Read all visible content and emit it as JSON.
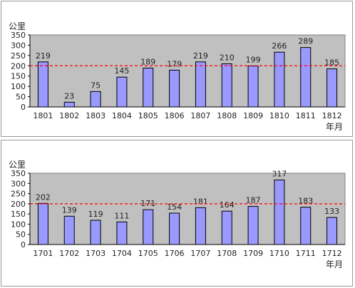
{
  "chart_data": [
    {
      "type": "bar",
      "ylabel": "公里",
      "xlabel": "年月",
      "ylim": [
        0,
        350
      ],
      "yticks": [
        0,
        50,
        100,
        150,
        200,
        250,
        300,
        350
      ],
      "categories": [
        "1801",
        "1802",
        "1803",
        "1804",
        "1805",
        "1806",
        "1807",
        "1808",
        "1809",
        "1810",
        "1811",
        "1812"
      ],
      "values": [
        219,
        23,
        75,
        145,
        189,
        179,
        219,
        210,
        199,
        266,
        289,
        185
      ],
      "reference_line": 200,
      "colors": {
        "bar": "#9999ff",
        "plot_bg": "#c0c0c0",
        "reference": "#ff0000"
      }
    },
    {
      "type": "bar",
      "ylabel": "公里",
      "xlabel": "年月",
      "ylim": [
        0,
        350
      ],
      "yticks": [
        0,
        50,
        100,
        150,
        200,
        250,
        300,
        350
      ],
      "categories": [
        "1701",
        "1702",
        "1703",
        "1704",
        "1705",
        "1706",
        "1707",
        "1708",
        "1709",
        "1710",
        "1711",
        "1712"
      ],
      "values": [
        202,
        139,
        119,
        111,
        171,
        154,
        181,
        164,
        187,
        317,
        183,
        133
      ],
      "reference_line": 200,
      "colors": {
        "bar": "#9999ff",
        "plot_bg": "#c0c0c0",
        "reference": "#ff0000"
      }
    }
  ]
}
